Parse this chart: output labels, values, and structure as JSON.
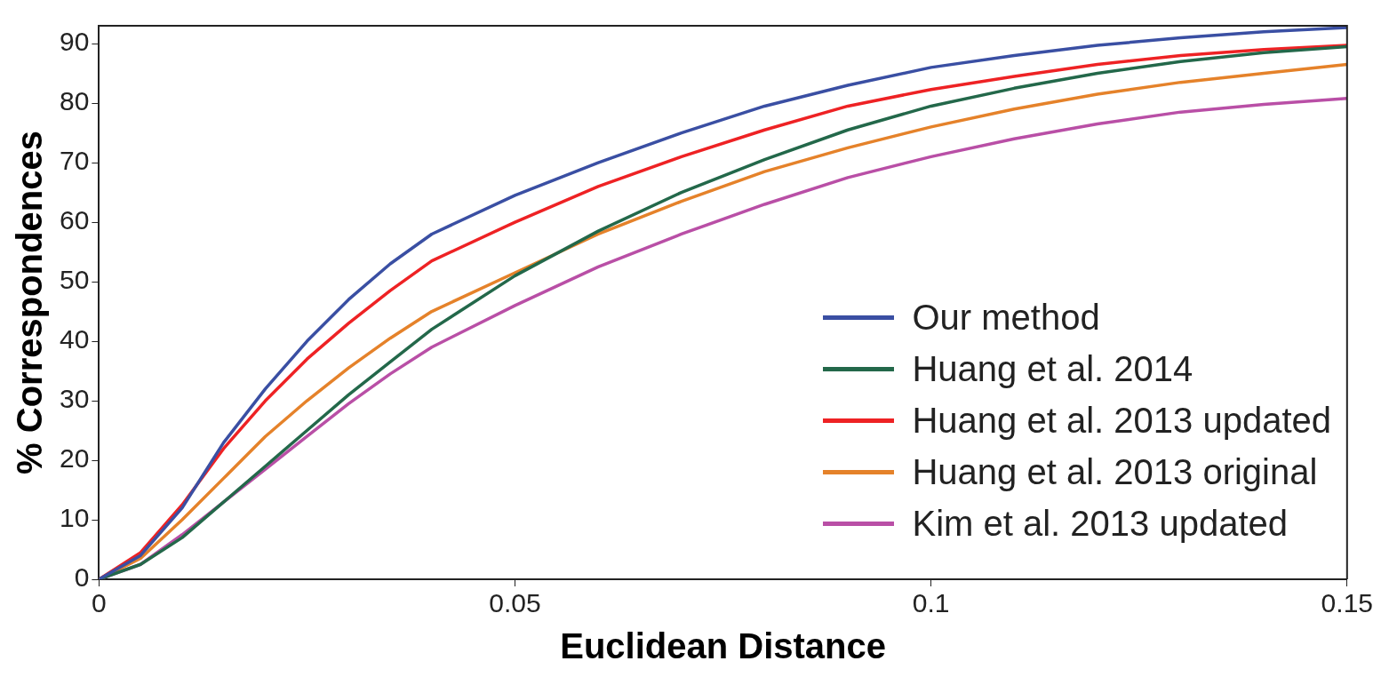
{
  "chart_data": {
    "type": "line",
    "xlabel": "Euclidean Distance",
    "ylabel": "% Correspondences",
    "x": [
      0,
      0.005,
      0.01,
      0.015,
      0.02,
      0.025,
      0.03,
      0.035,
      0.04,
      0.05,
      0.06,
      0.07,
      0.08,
      0.09,
      0.1,
      0.11,
      0.12,
      0.13,
      0.14,
      0.15
    ],
    "series": [
      {
        "name": "Our method",
        "color": "#3a4fa3",
        "values": [
          0,
          4,
          12,
          23,
          32,
          40,
          47,
          53,
          58,
          64.5,
          70,
          75,
          79.5,
          83,
          86,
          88,
          89.7,
          91,
          92,
          92.7
        ]
      },
      {
        "name": "Huang et al. 2014",
        "color": "#23684a",
        "values": [
          0,
          2.5,
          7,
          13,
          19,
          25,
          31,
          36.5,
          42,
          51,
          58.5,
          65,
          70.5,
          75.5,
          79.5,
          82.5,
          85,
          87,
          88.5,
          89.5
        ]
      },
      {
        "name": "Huang et al. 2013 updated",
        "color": "#ee2224",
        "values": [
          0,
          4.5,
          12.5,
          22,
          30,
          37,
          43,
          48.5,
          53.5,
          60,
          66,
          71,
          75.5,
          79.5,
          82.3,
          84.5,
          86.5,
          88,
          89,
          89.7
        ]
      },
      {
        "name": "Huang et al. 2013 original",
        "color": "#e5822a",
        "values": [
          0,
          3.5,
          10,
          17,
          24,
          30,
          35.5,
          40.5,
          45,
          51.5,
          58,
          63.5,
          68.5,
          72.5,
          76,
          79,
          81.5,
          83.5,
          85,
          86.5
        ]
      },
      {
        "name": "Kim et al. 2013 updated",
        "color": "#b94fa6",
        "values": [
          0,
          2.5,
          7.5,
          13,
          18.5,
          24,
          29.5,
          34.5,
          39,
          46,
          52.5,
          58,
          63,
          67.5,
          71,
          74,
          76.5,
          78.5,
          79.8,
          80.8
        ]
      }
    ],
    "xlim": [
      0,
      0.15
    ],
    "xticks": [
      0,
      0.05,
      0.1,
      0.15
    ],
    "ylim": [
      0,
      93
    ],
    "yticks": [
      0,
      10,
      20,
      30,
      40,
      50,
      60,
      70,
      80,
      90
    ],
    "grid": false,
    "legend": "bottom right",
    "marker": "none",
    "line_style": "solid"
  }
}
